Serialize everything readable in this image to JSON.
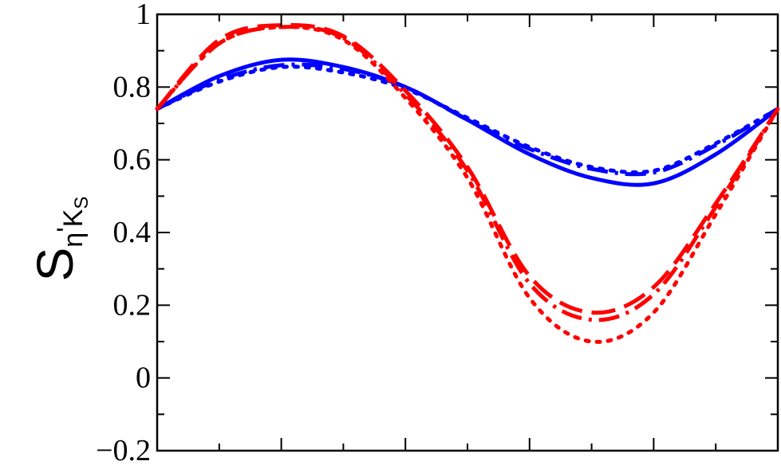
{
  "chart_data": {
    "type": "line",
    "title": "",
    "xlabel": "",
    "ylabel": {
      "main": "S",
      "sub_parts": [
        "η",
        "'",
        "K"
      ],
      "subsub": "S"
    },
    "xlim": [
      0,
      1
    ],
    "ylim": [
      -0.2,
      1.0
    ],
    "yticks": [
      -0.2,
      0,
      0.2,
      0.4,
      0.6,
      0.8,
      1.0
    ],
    "ytick_labels": [
      "−0.2",
      "0",
      "0.2",
      "0.4",
      "0.6",
      "0.8",
      "1"
    ],
    "xticks_count": 10,
    "grid": false,
    "legend": "none",
    "series": [
      {
        "color": "#0000ff",
        "style": "solid",
        "x": [
          0,
          0.1,
          0.2,
          0.3,
          0.4,
          0.5,
          0.6,
          0.7,
          0.8,
          0.9,
          1.0
        ],
        "y": [
          0.74,
          0.83,
          0.875,
          0.855,
          0.8,
          0.71,
          0.615,
          0.55,
          0.535,
          0.615,
          0.74
        ]
      },
      {
        "color": "#0000ff",
        "style": "dashdot",
        "x": [
          0,
          0.1,
          0.2,
          0.3,
          0.4,
          0.5,
          0.6,
          0.7,
          0.8,
          0.9,
          1.0
        ],
        "y": [
          0.74,
          0.82,
          0.86,
          0.85,
          0.8,
          0.71,
          0.63,
          0.575,
          0.565,
          0.64,
          0.74
        ]
      },
      {
        "color": "#0000ff",
        "style": "dotted",
        "x": [
          0,
          0.1,
          0.2,
          0.3,
          0.4,
          0.5,
          0.6,
          0.7,
          0.8,
          0.9,
          1.0
        ],
        "y": [
          0.74,
          0.815,
          0.855,
          0.84,
          0.795,
          0.715,
          0.635,
          0.58,
          0.57,
          0.645,
          0.74
        ]
      },
      {
        "color": "#ff0000",
        "style": "dashed",
        "x": [
          0,
          0.1,
          0.2,
          0.3,
          0.4,
          0.5,
          0.6,
          0.7,
          0.8,
          0.9,
          1.0
        ],
        "y": [
          0.74,
          0.93,
          0.97,
          0.94,
          0.79,
          0.58,
          0.28,
          0.18,
          0.25,
          0.48,
          0.74
        ]
      },
      {
        "color": "#ff0000",
        "style": "dashdot",
        "x": [
          0,
          0.1,
          0.2,
          0.3,
          0.4,
          0.5,
          0.6,
          0.7,
          0.8,
          0.9,
          1.0
        ],
        "y": [
          0.74,
          0.92,
          0.965,
          0.935,
          0.78,
          0.57,
          0.26,
          0.16,
          0.23,
          0.47,
          0.74
        ]
      },
      {
        "color": "#ff0000",
        "style": "dotted",
        "x": [
          0,
          0.1,
          0.2,
          0.3,
          0.4,
          0.5,
          0.6,
          0.7,
          0.8,
          0.9,
          1.0
        ],
        "y": [
          0.74,
          0.92,
          0.965,
          0.93,
          0.77,
          0.55,
          0.22,
          0.1,
          0.18,
          0.45,
          0.74
        ]
      }
    ]
  }
}
